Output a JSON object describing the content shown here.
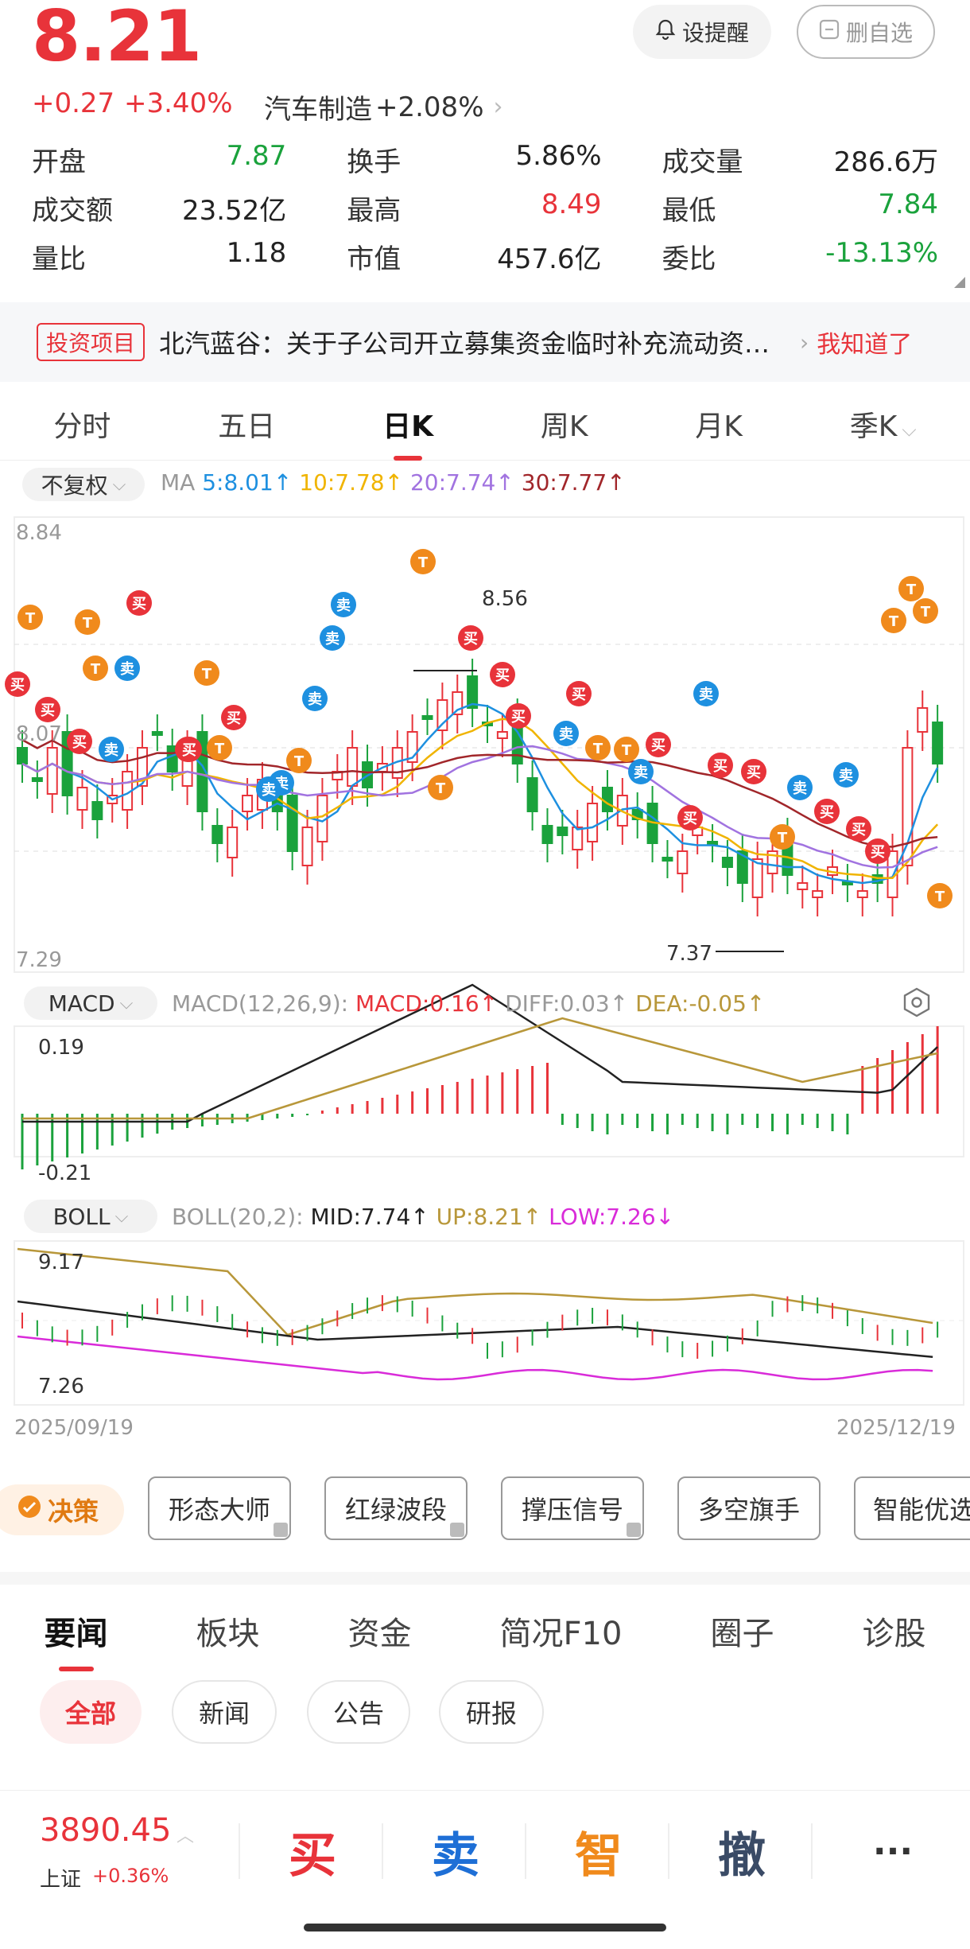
{
  "quote": {
    "price": "8.21",
    "change": "+0.27",
    "change_pct": "+3.40%",
    "sector": "汽车制造",
    "sector_pct": "+2.08%",
    "alert_label": "设提醒",
    "remove_label": "删自选"
  },
  "stats": [
    [
      {
        "label": "开盘",
        "value": "7.87",
        "color": "green"
      },
      {
        "label": "换手",
        "value": "5.86%",
        "color": "dark"
      },
      {
        "label": "成交量",
        "value": "286.6万",
        "color": "dark"
      }
    ],
    [
      {
        "label": "成交额",
        "value": "23.52亿",
        "color": "dark"
      },
      {
        "label": "最高",
        "value": "8.49",
        "color": "red"
      },
      {
        "label": "最低",
        "value": "7.84",
        "color": "green"
      }
    ],
    [
      {
        "label": "量比",
        "value": "1.18",
        "color": "dark"
      },
      {
        "label": "市值",
        "value": "457.6亿",
        "color": "dark"
      },
      {
        "label": "委比",
        "value": "-13.13%",
        "color": "green"
      }
    ]
  ],
  "notice": {
    "tag": "投资项目",
    "text": "北汽蓝谷：关于子公司开立募集资金临时补充流动资金专项账户的公告",
    "ack": "我知道了"
  },
  "period_tabs": [
    "分时",
    "五日",
    "日K",
    "周K",
    "月K",
    "季K"
  ],
  "period_active": 2,
  "kline": {
    "adjust": "不复权",
    "ma_label": "MA",
    "ma5": "5:8.01",
    "ma10": "10:7.78",
    "ma20": "20:7.74",
    "ma30": "30:7.77",
    "y_top": "8.84",
    "y_mid": "8.07",
    "y_bottom": "7.29",
    "high_mark": "8.56",
    "low_mark": "7.37",
    "signal_buy": "买",
    "signal_sell": "卖",
    "signal_t": "T"
  },
  "macd": {
    "name": "MACD",
    "params": "MACD(12,26,9):",
    "macd": "MACD:0.16",
    "diff": "DIFF:0.03",
    "dea": "DEA:-0.05",
    "y_top": "0.19",
    "y_bottom": "-0.21"
  },
  "boll": {
    "name": "BOLL",
    "params": "BOLL(20,2):",
    "mid": "MID:7.74",
    "up": "UP:8.21",
    "low": "LOW:7.26",
    "y_top": "9.17",
    "y_bottom": "7.26",
    "date_start": "2025/09/19",
    "date_end": "2025/12/19"
  },
  "tools": {
    "decision": "决策",
    "items": [
      "形态大师",
      "红绿波段",
      "撑压信号",
      "多空旗手",
      "智能优选"
    ]
  },
  "news_tabs": [
    "要闻",
    "板块",
    "资金",
    "简况F10",
    "圈子",
    "诊股"
  ],
  "news_active": 0,
  "filters": [
    "全部",
    "新闻",
    "公告",
    "研报"
  ],
  "filter_active": 0,
  "index": {
    "value": "3890.45",
    "name": "上证",
    "pct": "+0.36%"
  },
  "actions": {
    "buy": "买",
    "sell": "卖",
    "smart": "智",
    "cancel": "撤",
    "more": "···"
  },
  "colors": {
    "up": "#e8333a",
    "down": "#1aa23c",
    "ma5": "#1e90e0",
    "ma10": "#f0b400",
    "ma20": "#a173e0",
    "ma30": "#a1262a",
    "boll_up": "#b8973a",
    "boll_low": "#d92bd9",
    "macd_diff": "#222222",
    "macd_dea": "#b8973a",
    "accent_orange": "#f08a1c"
  }
}
